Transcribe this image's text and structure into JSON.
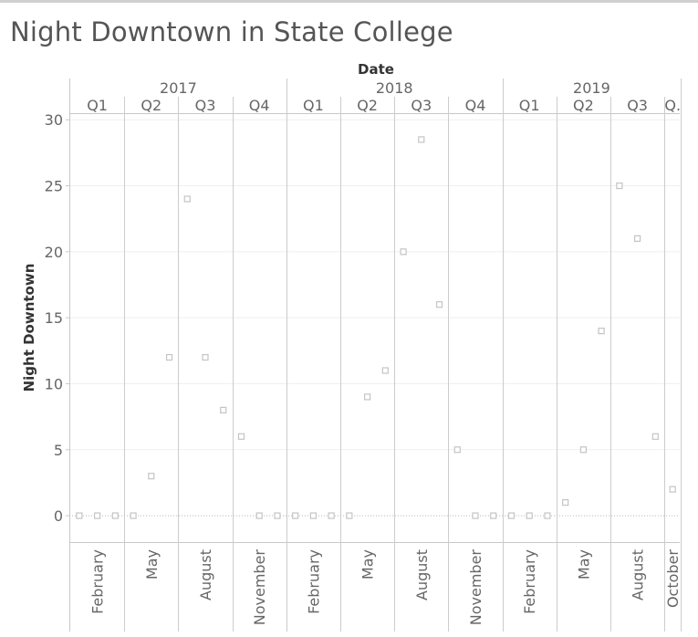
{
  "title": "Night Downtown in State College",
  "chart_data": {
    "type": "scatter",
    "title": "Night Downtown in State College",
    "xlabel": "Date",
    "ylabel": "Night Downtown",
    "ylim": [
      -2,
      30.5
    ],
    "yticks": [
      0,
      5,
      10,
      15,
      20,
      25,
      30
    ],
    "years": [
      {
        "label": "2017",
        "quarters": [
          "Q1",
          "Q2",
          "Q3",
          "Q4"
        ]
      },
      {
        "label": "2018",
        "quarters": [
          "Q1",
          "Q2",
          "Q3",
          "Q4"
        ]
      },
      {
        "label": "2019",
        "quarters": [
          "Q1",
          "Q2",
          "Q3",
          "Q."
        ]
      }
    ],
    "month_labels": [
      "February",
      "May",
      "August",
      "November",
      "February",
      "May",
      "August",
      "November",
      "February",
      "May",
      "August",
      "October"
    ],
    "zero_line": "dotted",
    "marker": "open-square",
    "points": [
      {
        "date": "2017-01",
        "value": 0
      },
      {
        "date": "2017-02",
        "value": 0
      },
      {
        "date": "2017-03",
        "value": 0
      },
      {
        "date": "2017-04",
        "value": 0
      },
      {
        "date": "2017-05",
        "value": 3
      },
      {
        "date": "2017-06",
        "value": 12
      },
      {
        "date": "2017-07",
        "value": 24
      },
      {
        "date": "2017-08",
        "value": 12
      },
      {
        "date": "2017-09",
        "value": 8
      },
      {
        "date": "2017-10",
        "value": 6
      },
      {
        "date": "2017-11",
        "value": 0
      },
      {
        "date": "2017-12",
        "value": 0
      },
      {
        "date": "2018-01",
        "value": 0
      },
      {
        "date": "2018-02",
        "value": 0
      },
      {
        "date": "2018-03",
        "value": 0
      },
      {
        "date": "2018-04",
        "value": 0
      },
      {
        "date": "2018-05",
        "value": 9
      },
      {
        "date": "2018-06",
        "value": 11
      },
      {
        "date": "2018-07",
        "value": 20
      },
      {
        "date": "2018-08",
        "value": 28.5
      },
      {
        "date": "2018-09",
        "value": 16
      },
      {
        "date": "2018-10",
        "value": 5
      },
      {
        "date": "2018-11",
        "value": 0
      },
      {
        "date": "2018-12",
        "value": 0
      },
      {
        "date": "2019-01",
        "value": 0
      },
      {
        "date": "2019-02",
        "value": 0
      },
      {
        "date": "2019-03",
        "value": 0
      },
      {
        "date": "2019-04",
        "value": 1
      },
      {
        "date": "2019-05",
        "value": 5
      },
      {
        "date": "2019-06",
        "value": 14
      },
      {
        "date": "2019-07",
        "value": 25
      },
      {
        "date": "2019-08",
        "value": 21
      },
      {
        "date": "2019-09",
        "value": 6
      },
      {
        "date": "2019-10",
        "value": 2
      }
    ],
    "grid": true,
    "legend": "none"
  }
}
